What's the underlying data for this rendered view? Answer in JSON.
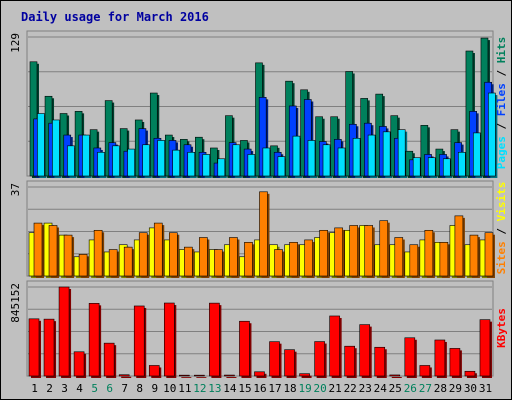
{
  "chart_data": {
    "type": "bar",
    "title": "Daily usage for March 2016",
    "days": [
      "1",
      "2",
      "3",
      "4",
      "5",
      "6",
      "7",
      "8",
      "9",
      "10",
      "11",
      "12",
      "13",
      "14",
      "15",
      "16",
      "17",
      "18",
      "19",
      "20",
      "21",
      "22",
      "23",
      "24",
      "25",
      "26",
      "27",
      "28",
      "29",
      "30",
      "31"
    ],
    "weekend_days": [
      "5",
      "6",
      "12",
      "13",
      "19",
      "20",
      "26",
      "27"
    ],
    "colors": {
      "hits": "#00805c",
      "files": "#0040ff",
      "pages": "#00e0ff",
      "visits": "#ffff00",
      "sites": "#ff8000",
      "kbytes": "#ff0000",
      "title": "#0000a0",
      "weekday_label": "#000000",
      "weekend_label": "#00805c",
      "background": "#c0c0c0",
      "plot_background": "#c0c0c0"
    },
    "panels": [
      {
        "id": "hits_files_pages",
        "axis_max_label": "129",
        "ymax": 129,
        "legend": [
          "Pages",
          "Files",
          "Hits"
        ],
        "legend_separator": " / ",
        "series": [
          {
            "name": "Hits",
            "values": [
              106,
              74,
              58,
              60,
              43,
              70,
              44,
              52,
              77,
              38,
              34,
              36,
              26,
              56,
              33,
              105,
              28,
              88,
              80,
              55,
              55,
              97,
              72,
              76,
              56,
              23,
              47,
              25,
              43,
              116,
              128
            ]
          },
          {
            "name": "Files",
            "values": [
              53,
              49,
              38,
              38,
              26,
              31,
              23,
              44,
              35,
              33,
              29,
              22,
              12,
              31,
              25,
              73,
              22,
              65,
              71,
              32,
              34,
              48,
              49,
              46,
              35,
              15,
              20,
              20,
              31,
              60,
              87
            ]
          },
          {
            "name": "Pages",
            "values": [
              58,
              52,
              28,
              38,
              22,
              28,
              25,
              29,
              33,
              24,
              22,
              20,
              16,
              29,
              20,
              26,
              18,
              37,
              33,
              29,
              26,
              35,
              38,
              41,
              43,
              17,
              17,
              16,
              22,
              40,
              77
            ]
          }
        ]
      },
      {
        "id": "visits_sites",
        "axis_max_label": "37",
        "ymax": 37,
        "legend": [
          "Sites",
          "Visits"
        ],
        "legend_separator": " / ",
        "series": [
          {
            "name": "Visits",
            "values": [
              18,
              22,
              17,
              8,
              15,
              10,
              13,
              15,
              20,
              15,
              11,
              10,
              11,
              13,
              8,
              15,
              13,
              13,
              13,
              16,
              18,
              19,
              21,
              13,
              13,
              10,
              15,
              14,
              21,
              13,
              15
            ]
          },
          {
            "name": "Sites",
            "values": [
              22,
              21,
              17,
              9,
              19,
              11,
              12,
              18,
              22,
              18,
              12,
              16,
              11,
              16,
              14,
              35,
              11,
              14,
              15,
              19,
              20,
              21,
              21,
              23,
              16,
              13,
              19,
              14,
              25,
              17,
              18
            ]
          }
        ]
      },
      {
        "id": "kbytes",
        "axis_max_label": "845152",
        "ymax": 845152,
        "legend": [
          "KBytes"
        ],
        "series": [
          {
            "name": "KBytes",
            "values": [
              543000,
              540000,
              845152,
              230000,
              690000,
              312000,
              12000,
              665000,
              100000,
              693000,
              8000,
              8000,
              692000,
              9000,
              520000,
              40000,
              326000,
              250000,
              22000,
              327000,
              570000,
              283000,
              488000,
              273000,
              10000,
              363000,
              100000,
              342000,
              262000,
              45000,
              535000
            ]
          }
        ]
      }
    ]
  }
}
